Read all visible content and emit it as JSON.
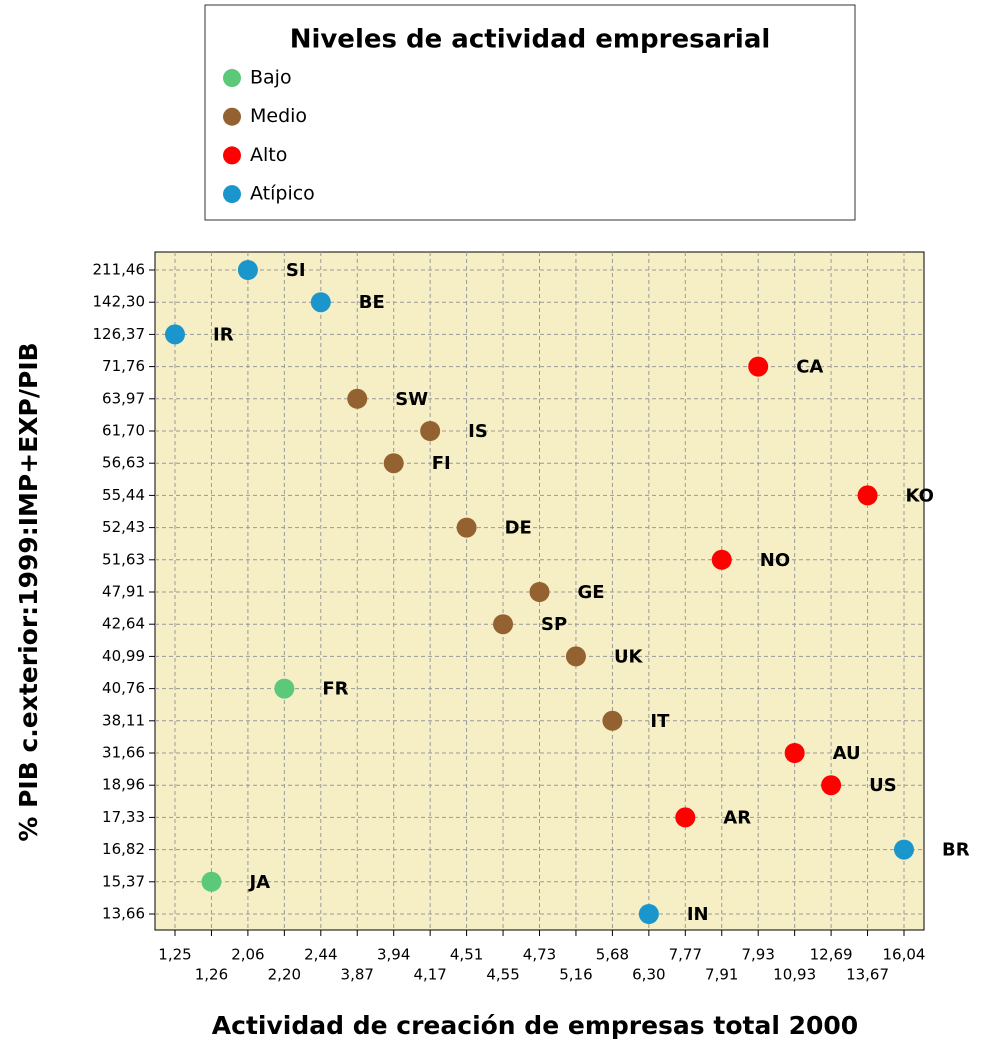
{
  "chart_data": {
    "type": "scatter",
    "legend_title": "Niveles de actividad empresarial",
    "xlabel": "Actividad de creación de empresas total 2000",
    "ylabel": "% PIB c.exterior:1999:IMP+EXP/PIB",
    "xscale": "ordinal",
    "yscale": "ordinal",
    "grid": true,
    "background": "#f6efc6",
    "xticks": [
      {
        "value": 1.25,
        "label": "1,25"
      },
      {
        "value": 1.26,
        "label": "1,26"
      },
      {
        "value": 2.06,
        "label": "2,06"
      },
      {
        "value": 2.2,
        "label": "2,20"
      },
      {
        "value": 2.44,
        "label": "2,44"
      },
      {
        "value": 3.87,
        "label": "3,87"
      },
      {
        "value": 3.94,
        "label": "3,94"
      },
      {
        "value": 4.17,
        "label": "4,17"
      },
      {
        "value": 4.51,
        "label": "4,51"
      },
      {
        "value": 4.55,
        "label": "4,55"
      },
      {
        "value": 4.73,
        "label": "4,73"
      },
      {
        "value": 5.16,
        "label": "5,16"
      },
      {
        "value": 5.68,
        "label": "5,68"
      },
      {
        "value": 6.3,
        "label": "6,30"
      },
      {
        "value": 7.77,
        "label": "7,77"
      },
      {
        "value": 7.91,
        "label": "7,91"
      },
      {
        "value": 7.93,
        "label": "7,93"
      },
      {
        "value": 10.93,
        "label": "10,93"
      },
      {
        "value": 12.69,
        "label": "12,69"
      },
      {
        "value": 13.67,
        "label": "13,67"
      },
      {
        "value": 16.04,
        "label": "16,04"
      }
    ],
    "yticks": [
      {
        "value": 13.66,
        "label": "13,66"
      },
      {
        "value": 15.37,
        "label": "15,37"
      },
      {
        "value": 16.82,
        "label": "16,82"
      },
      {
        "value": 17.33,
        "label": "17,33"
      },
      {
        "value": 18.96,
        "label": "18,96"
      },
      {
        "value": 31.66,
        "label": "31,66"
      },
      {
        "value": 38.11,
        "label": "38,11"
      },
      {
        "value": 40.76,
        "label": "40,76"
      },
      {
        "value": 40.99,
        "label": "40,99"
      },
      {
        "value": 42.64,
        "label": "42,64"
      },
      {
        "value": 47.91,
        "label": "47,91"
      },
      {
        "value": 51.63,
        "label": "51,63"
      },
      {
        "value": 52.43,
        "label": "52,43"
      },
      {
        "value": 55.44,
        "label": "55,44"
      },
      {
        "value": 56.63,
        "label": "56,63"
      },
      {
        "value": 61.7,
        "label": "61,70"
      },
      {
        "value": 63.97,
        "label": "63,97"
      },
      {
        "value": 71.76,
        "label": "71,76"
      },
      {
        "value": 126.37,
        "label": "126,37"
      },
      {
        "value": 142.3,
        "label": "142,30"
      },
      {
        "value": 211.46,
        "label": "211,46"
      }
    ],
    "series": [
      {
        "name": "Bajo",
        "color": "#5cc97a",
        "x": [
          2.2,
          1.26
        ],
        "values": [
          40.76,
          15.37
        ],
        "point_labels": [
          "FR",
          "JA"
        ]
      },
      {
        "name": "Medio",
        "color": "#946231",
        "x": [
          3.87,
          4.17,
          3.94,
          4.51,
          4.73,
          4.55,
          5.16,
          5.68
        ],
        "values": [
          63.97,
          61.7,
          56.63,
          52.43,
          47.91,
          42.64,
          40.99,
          38.11
        ],
        "point_labels": [
          "SW",
          "IS",
          "FI",
          "DE",
          "GE",
          "SP",
          "UK",
          "IT"
        ]
      },
      {
        "name": "Alto",
        "color": "#ff0000",
        "x": [
          7.93,
          13.67,
          7.91,
          10.93,
          12.69,
          7.77
        ],
        "values": [
          71.76,
          55.44,
          51.63,
          31.66,
          18.96,
          17.33
        ],
        "point_labels": [
          "CA",
          "KO",
          "NO",
          "AU",
          "US",
          "AR"
        ]
      },
      {
        "name": "Atípico",
        "color": "#1a96cc",
        "x": [
          2.06,
          2.44,
          1.25,
          16.04,
          6.3
        ],
        "values": [
          211.46,
          142.3,
          126.37,
          16.82,
          13.66
        ],
        "point_labels": [
          "SI",
          "BE",
          "IR",
          "BR",
          "IN"
        ]
      }
    ]
  }
}
